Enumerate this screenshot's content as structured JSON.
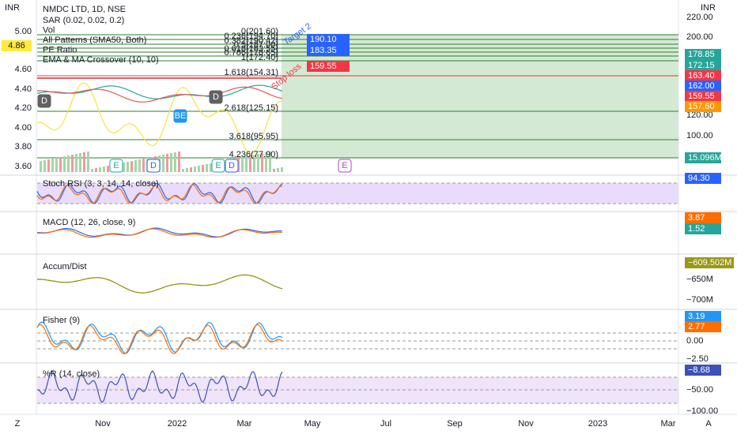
{
  "header": {
    "symbol": "NMDC LTD, 1D, NSE",
    "indicators": [
      "SAR (0.02, 0.02, 0.2)",
      "Vol",
      "All Patterns (SMA50, Both)",
      "PE Ratio",
      "EMA & MA Crossover (10, 10)"
    ],
    "currency_left": "INR",
    "currency_right": "INR"
  },
  "left_axis": {
    "labels": [
      "5.00",
      "4.60",
      "4.40",
      "4.20",
      "4.00",
      "3.80",
      "3.60"
    ],
    "current": "4.86"
  },
  "right_axis": {
    "labels": [
      "220.00",
      "200.00",
      "120.00",
      "100.00"
    ],
    "badges": [
      {
        "text": "178.85",
        "color": "#26a69a"
      },
      {
        "text": "172.15",
        "color": "#26a69a"
      },
      {
        "text": "163.40",
        "color": "#f23645"
      },
      {
        "text": "162.00",
        "color": "#2962ff"
      },
      {
        "text": "159.55",
        "color": "#f23645"
      },
      {
        "text": "157.60",
        "color": "#ff9800"
      },
      {
        "text": "15.096M",
        "color": "#26a69a"
      }
    ]
  },
  "fib": [
    "0(201.60)",
    "0.236(194.70)",
    "0.382(190.42)",
    "0.5(187.00)",
    "0.618(183.55)",
    "0.786(178.65)",
    "1(172.40)",
    "1.618(154.31)",
    "2.618(125.15)",
    "3.618(95.95)",
    "4.236(77.90)"
  ],
  "trade_labels": [
    {
      "text": "190.10",
      "color": "#2962ff"
    },
    {
      "text": "183.35",
      "color": "#2962ff"
    },
    {
      "text": "159.55",
      "color": "#f23645"
    }
  ],
  "annotations": [
    "Target 2",
    "Stop loss"
  ],
  "markers": [
    "D",
    "BE",
    "D",
    "E",
    "D",
    "E",
    "D",
    "E"
  ],
  "panes": [
    {
      "title": "Stoch RSI (3, 3, 14, 14, close)",
      "badges": [
        {
          "text": "94.30",
          "color": "#2962ff"
        }
      ],
      "labels": []
    },
    {
      "title": "MACD (12, 26, close, 9)",
      "badges": [
        {
          "text": "3.87",
          "color": "#ff6d00"
        },
        {
          "text": "1.52",
          "color": "#26a69a"
        }
      ],
      "labels": []
    },
    {
      "title": "Accum/Dist",
      "badges": [
        {
          "text": "−609.502M",
          "color": "#999915"
        }
      ],
      "labels": [
        "−650M",
        "−700M"
      ]
    },
    {
      "title": "Fisher (9)",
      "badges": [
        {
          "text": "3.19",
          "color": "#2196f3"
        },
        {
          "text": "2.77",
          "color": "#ff6d00"
        }
      ],
      "labels": [
        "0.00",
        "−2.50"
      ]
    },
    {
      "title": "%R (14, close)",
      "badges": [
        {
          "text": "−8.68",
          "color": "#3f51b5"
        }
      ],
      "labels": [
        "−50.00",
        "−100.00"
      ]
    }
  ],
  "time_axis": [
    "Nov",
    "2022",
    "Mar",
    "May",
    "Jul",
    "Sep",
    "Nov",
    "2023",
    "Mar"
  ],
  "corner": {
    "left": "Z",
    "right": "A"
  }
}
